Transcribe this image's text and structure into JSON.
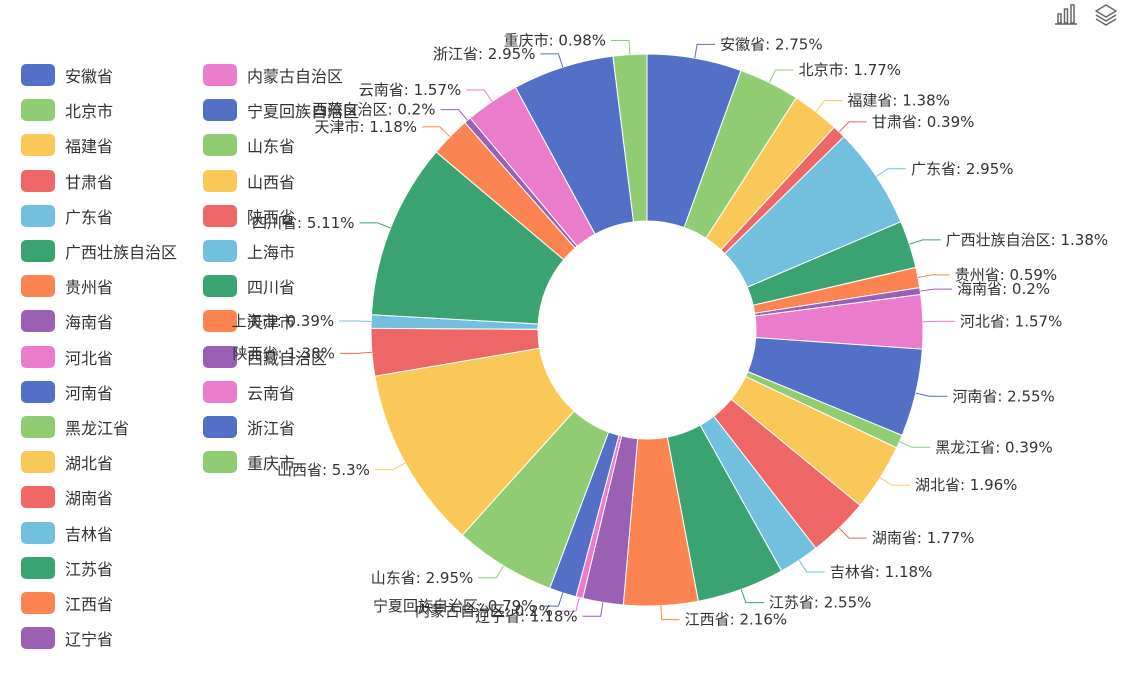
{
  "colors": [
    "#5470c6",
    "#91cc75",
    "#fac858",
    "#ee6666",
    "#73c0de",
    "#3ba272",
    "#fc8452",
    "#9a60b4",
    "#ea7ccc"
  ],
  "toolbox": {
    "icons": [
      "bar-chart-icon",
      "layers-icon"
    ]
  },
  "chart_data": {
    "type": "pie",
    "style": "donut",
    "legend_position": "left",
    "series": [
      {
        "name": "安徽省",
        "label": "安徽省: 2.75%",
        "value": 2.75
      },
      {
        "name": "北京市",
        "label": "北京市: 1.77%",
        "value": 1.77
      },
      {
        "name": "福建省",
        "label": "福建省: 1.38%",
        "value": 1.38
      },
      {
        "name": "甘肃省",
        "label": "甘肃省: 0.39%",
        "value": 0.39
      },
      {
        "name": "广东省",
        "label": "广东省: 2.95%",
        "value": 2.95
      },
      {
        "name": "广西壮族自治区",
        "label": "广西壮族自治区: 1.38%",
        "value": 1.38
      },
      {
        "name": "贵州省",
        "label": "贵州省: 0.59%",
        "value": 0.59
      },
      {
        "name": "海南省",
        "label": "海南省: 0.2%",
        "value": 0.2
      },
      {
        "name": "河北省",
        "label": "河北省: 1.57%",
        "value": 1.57
      },
      {
        "name": "河南省",
        "label": "河南省: 2.55%",
        "value": 2.55
      },
      {
        "name": "黑龙江省",
        "label": "黑龙江省: 0.39%",
        "value": 0.39
      },
      {
        "name": "湖北省",
        "label": "湖北省: 1.96%",
        "value": 1.96
      },
      {
        "name": "湖南省",
        "label": "湖南省: 1.77%",
        "value": 1.77
      },
      {
        "name": "吉林省",
        "label": "吉林省: 1.18%",
        "value": 1.18
      },
      {
        "name": "江苏省",
        "label": "江苏省: 2.55%",
        "value": 2.55
      },
      {
        "name": "江西省",
        "label": "江西省: 2.16%",
        "value": 2.16
      },
      {
        "name": "辽宁省",
        "label": "辽宁省: 1.18%",
        "value": 1.18
      },
      {
        "name": "内蒙古自治区",
        "label": "内蒙古自治区: 0.2%",
        "value": 0.2
      },
      {
        "name": "宁夏回族自治区",
        "label": "宁夏回族自治区: 0.79%",
        "value": 0.79
      },
      {
        "name": "山东省",
        "label": "山东省: 2.95%",
        "value": 2.95
      },
      {
        "name": "山西省",
        "label": "山西省: 5.3%",
        "value": 5.3
      },
      {
        "name": "陕西省",
        "label": "陕西省: 1.38%",
        "value": 1.38
      },
      {
        "name": "上海市",
        "label": "上海市: 0.39%",
        "value": 0.39
      },
      {
        "name": "四川省",
        "label": "四川省: 5.11%",
        "value": 5.11
      },
      {
        "name": "天津市",
        "label": "天津市: 1.18%",
        "value": 1.18
      },
      {
        "name": "西藏自治区",
        "label": "西藏自治区: 0.2%",
        "value": 0.2
      },
      {
        "name": "云南省",
        "label": "云南省: 1.57%",
        "value": 1.57
      },
      {
        "name": "浙江省",
        "label": "浙江省: 2.95%",
        "value": 2.95
      },
      {
        "name": "重庆市",
        "label": "重庆市: 0.98%",
        "value": 0.98
      }
    ]
  }
}
